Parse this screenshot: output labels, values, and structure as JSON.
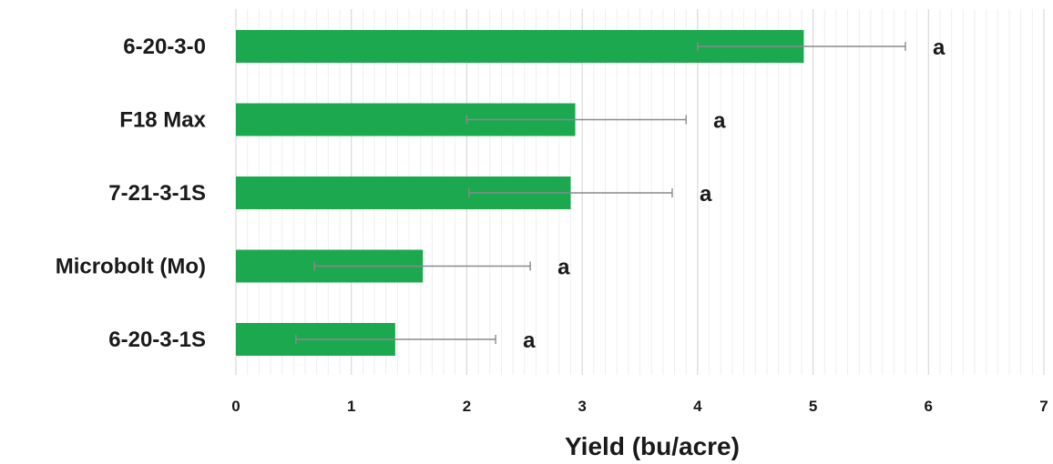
{
  "chart_data": {
    "type": "bar",
    "orientation": "horizontal",
    "categories": [
      "6-20-3-0",
      "F18 Max",
      "7-21-3-1S",
      "Microbolt (Mo)",
      "6-20-3-1S"
    ],
    "values": [
      4.92,
      2.94,
      2.9,
      1.62,
      1.38
    ],
    "error_low": [
      4.0,
      2.0,
      2.02,
      0.68,
      0.52
    ],
    "error_high": [
      5.8,
      3.9,
      3.78,
      2.55,
      2.25
    ],
    "significance_letters": [
      "a",
      "a",
      "a",
      "a",
      "a"
    ],
    "title": "",
    "xlabel": "Yield (bu/acre)",
    "ylabel": "",
    "xlim": [
      0,
      7
    ],
    "x_ticks": [
      "0",
      "1",
      "2",
      "3",
      "4",
      "5",
      "6",
      "7"
    ],
    "grid": "vertical",
    "legend": "none",
    "bar_color": "#1ba84f",
    "error_bar_color": "#8a8a8a",
    "grid_color": "#d9d9d9"
  }
}
